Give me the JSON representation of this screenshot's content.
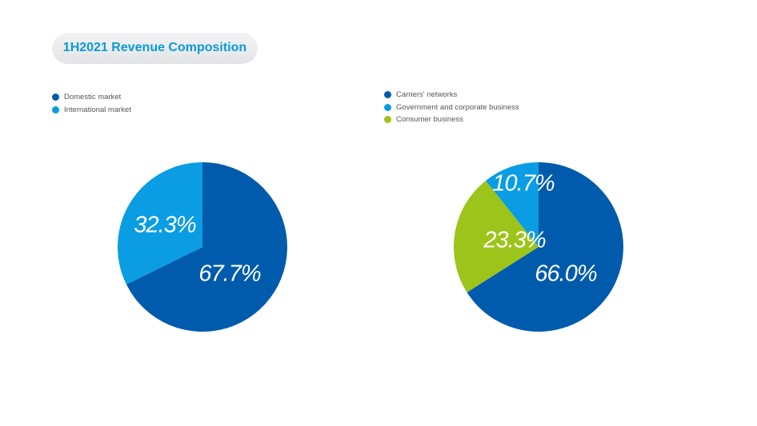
{
  "title": "1H2021 Revenue Composition",
  "chart_data": [
    {
      "type": "pie",
      "title": "",
      "legend_position": "top-left",
      "slices": [
        {
          "label": "Domestic market",
          "value": 67.7,
          "display": "67.7%",
          "color": "#015bac"
        },
        {
          "label": "International market",
          "value": 32.3,
          "display": "32.3%",
          "color": "#0a9de3"
        }
      ]
    },
    {
      "type": "pie",
      "title": "",
      "legend_position": "top-left",
      "slices": [
        {
          "label": "Carriers' networks",
          "value": 66.0,
          "display": "66.0%",
          "color": "#015bac"
        },
        {
          "label": "Government and corporate business",
          "value": 10.7,
          "display": "10.7%",
          "color": "#0a9de3"
        },
        {
          "label": "Consumer business",
          "value": 23.3,
          "display": "23.3%",
          "color": "#9dc41a"
        }
      ]
    }
  ]
}
